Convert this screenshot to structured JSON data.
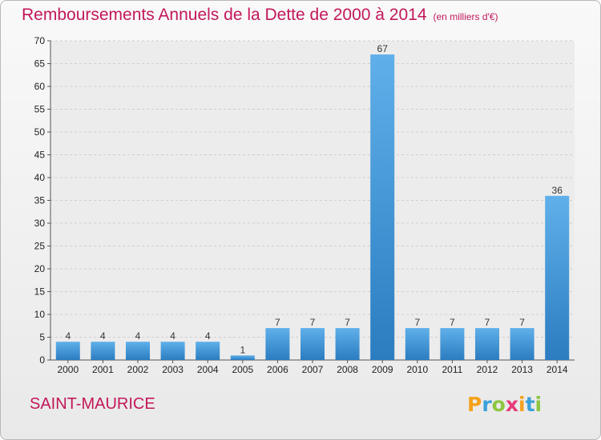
{
  "chart_data": {
    "type": "bar",
    "title": "Remboursements Annuels de la Dette de 2000 à 2014",
    "unit_note": "(en milliers d'€)",
    "categories": [
      "2000",
      "2001",
      "2002",
      "2003",
      "2004",
      "2005",
      "2006",
      "2007",
      "2008",
      "2009",
      "2010",
      "2011",
      "2012",
      "2013",
      "2014"
    ],
    "values": [
      4,
      4,
      4,
      4,
      4,
      1,
      7,
      7,
      7,
      67,
      7,
      7,
      7,
      7,
      36
    ],
    "ylim": [
      0,
      70
    ],
    "yticks": [
      0,
      5,
      10,
      15,
      20,
      25,
      30,
      35,
      40,
      45,
      50,
      55,
      60,
      65,
      70
    ],
    "grid": true,
    "bar_color": "#4a9fe0",
    "bar_color_dark": "#2b7cc0",
    "data_labels": true
  },
  "commune_name": "SAINT-MAURICE",
  "logo": {
    "letters": [
      "P",
      "r",
      "o",
      "x",
      "i",
      "t",
      "i"
    ],
    "colors": [
      "#f5a21b",
      "#3aa0d8",
      "#8cc63f",
      "#e63b7a",
      "#f5a21b",
      "#3aa0d8",
      "#8cc63f"
    ]
  }
}
